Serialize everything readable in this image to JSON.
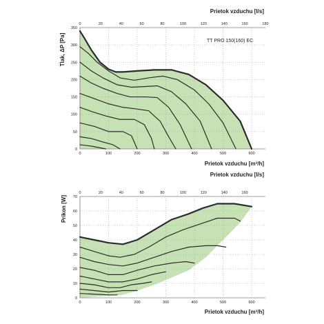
{
  "chart_data": [
    {
      "type": "area",
      "model_label": "TT PRO 150(160) EC",
      "top_axis_label": "Prietok vzduchu [l/s]",
      "bottom_axis_label": "Prietok vzduchu [m³/h]",
      "y_axis_label": "Tlak, ΔP [Pa]",
      "top_ticks": [
        "0",
        "20",
        "40",
        "60",
        "80",
        "100",
        "120",
        "140",
        "160",
        "180"
      ],
      "bottom_ticks": [
        "0",
        "100",
        "200",
        "300",
        "400",
        "500",
        "600"
      ],
      "y_ticks": [
        "0",
        "50",
        "100",
        "150",
        "200",
        "250",
        "300",
        "350"
      ],
      "xlim": [
        0,
        648
      ],
      "ylim": [
        0,
        350
      ],
      "fill_color": "#c6e2b4",
      "series": [
        {
          "values": [
            [
              0,
              340
            ],
            [
              15,
              320
            ],
            [
              40,
              285
            ],
            [
              70,
              250
            ],
            [
              100,
              230
            ],
            [
              125,
              222
            ],
            [
              150,
              222
            ],
            [
              200,
              225
            ],
            [
              260,
              228
            ],
            [
              320,
              228
            ],
            [
              380,
              215
            ],
            [
              440,
              185
            ],
            [
              500,
              140
            ],
            [
              560,
              80
            ],
            [
              600,
              0
            ]
          ]
        },
        {
          "values": [
            [
              0,
              295
            ],
            [
              30,
              275
            ],
            [
              60,
              250
            ],
            [
              100,
              225
            ],
            [
              140,
              205
            ],
            [
              190,
              198
            ],
            [
              240,
              205
            ],
            [
              290,
              210
            ],
            [
              340,
              200
            ],
            [
              400,
              170
            ],
            [
              450,
              130
            ],
            [
              500,
              75
            ],
            [
              545,
              0
            ]
          ]
        },
        {
          "values": [
            [
              0,
              250
            ],
            [
              40,
              225
            ],
            [
              80,
              205
            ],
            [
              130,
              185
            ],
            [
              180,
              178
            ],
            [
              230,
              180
            ],
            [
              270,
              182
            ],
            [
              320,
              165
            ],
            [
              370,
              130
            ],
            [
              420,
              80
            ],
            [
              460,
              0
            ]
          ]
        },
        {
          "values": [
            [
              0,
              210
            ],
            [
              40,
              190
            ],
            [
              80,
              175
            ],
            [
              130,
              160
            ],
            [
              175,
              150
            ],
            [
              230,
              150
            ],
            [
              270,
              148
            ],
            [
              310,
              120
            ],
            [
              350,
              70
            ],
            [
              390,
              0
            ]
          ]
        },
        {
          "values": [
            [
              0,
              160
            ],
            [
              50,
              145
            ],
            [
              100,
              130
            ],
            [
              150,
              120
            ],
            [
              200,
              115
            ],
            [
              240,
              110
            ],
            [
              280,
              80
            ],
            [
              310,
              35
            ],
            [
              335,
              0
            ]
          ]
        },
        {
          "values": [
            [
              0,
              120
            ],
            [
              40,
              108
            ],
            [
              90,
              95
            ],
            [
              140,
              85
            ],
            [
              190,
              85
            ],
            [
              225,
              70
            ],
            [
              250,
              30
            ],
            [
              260,
              0
            ]
          ]
        },
        {
          "values": [
            [
              0,
              75
            ],
            [
              50,
              65
            ],
            [
              100,
              50
            ],
            [
              150,
              50
            ],
            [
              180,
              38
            ],
            [
              200,
              0
            ]
          ]
        },
        {
          "values": [
            [
              0,
              35
            ],
            [
              40,
              30
            ],
            [
              80,
              20
            ],
            [
              115,
              12
            ],
            [
              140,
              0
            ]
          ]
        },
        {
          "values": [
            [
              0,
              12
            ],
            [
              40,
              8
            ],
            [
              90,
              0
            ]
          ]
        }
      ]
    },
    {
      "type": "area",
      "top_axis_label": "Prietok vzduchu [l/s]",
      "bottom_axis_label": "Prietok vzduchu [m³/h]",
      "y_axis_label": "Príkon [W]",
      "top_ticks": [
        "0",
        "20",
        "40",
        "60",
        "80",
        "100",
        "120",
        "140",
        "160"
      ],
      "bottom_ticks": [
        "0",
        "100",
        "200",
        "300",
        "400",
        "500",
        "600"
      ],
      "y_ticks": [
        "0",
        "10",
        "20",
        "30",
        "40",
        "50",
        "60",
        "70"
      ],
      "xlim": [
        0,
        648
      ],
      "ylim": [
        0,
        70
      ],
      "fill_color": "#c6e2b4",
      "series": [
        {
          "values": [
            [
              0,
              42
            ],
            [
              50,
              40
            ],
            [
              100,
              38
            ],
            [
              150,
              37
            ],
            [
              200,
              40
            ],
            [
              260,
              47
            ],
            [
              320,
              54
            ],
            [
              380,
              58
            ],
            [
              430,
              62
            ],
            [
              480,
              65
            ],
            [
              540,
              65
            ],
            [
              600,
              63
            ]
          ]
        },
        {
          "values": [
            [
              0,
              35
            ],
            [
              50,
              32
            ],
            [
              100,
              29
            ],
            [
              140,
              28
            ],
            [
              190,
              30
            ],
            [
              240,
              35
            ],
            [
              300,
              42
            ],
            [
              360,
              47
            ],
            [
              420,
              51
            ],
            [
              480,
              55
            ],
            [
              540,
              55
            ],
            [
              560,
              53
            ]
          ]
        },
        {
          "values": [
            [
              0,
              28
            ],
            [
              50,
              25
            ],
            [
              100,
              23
            ],
            [
              150,
              22
            ],
            [
              200,
              24
            ],
            [
              260,
              28
            ],
            [
              320,
              32
            ],
            [
              380,
              35
            ],
            [
              440,
              36
            ],
            [
              480,
              36
            ],
            [
              510,
              35
            ]
          ]
        },
        {
          "values": [
            [
              0,
              21
            ],
            [
              50,
              19
            ],
            [
              100,
              16
            ],
            [
              150,
              16
            ],
            [
              200,
              19
            ],
            [
              260,
              22
            ],
            [
              320,
              24
            ],
            [
              370,
              25
            ],
            [
              400,
              24
            ]
          ]
        },
        {
          "values": [
            [
              0,
              15
            ],
            [
              50,
              13
            ],
            [
              100,
              11
            ],
            [
              150,
              11
            ],
            [
              200,
              13
            ],
            [
              250,
              16
            ],
            [
              300,
              18
            ]
          ]
        },
        {
          "values": [
            [
              0,
              10
            ],
            [
              50,
              9
            ],
            [
              100,
              7
            ],
            [
              140,
              7
            ],
            [
              180,
              9
            ],
            [
              220,
              10
            ],
            [
              250,
              11
            ]
          ]
        },
        {
          "values": [
            [
              0,
              6
            ],
            [
              50,
              5
            ],
            [
              100,
              4
            ],
            [
              150,
              5
            ],
            [
              200,
              5
            ]
          ]
        },
        {
          "values": [
            [
              0,
              3
            ],
            [
              50,
              2.5
            ],
            [
              100,
              2
            ],
            [
              130,
              2
            ]
          ]
        }
      ]
    }
  ]
}
